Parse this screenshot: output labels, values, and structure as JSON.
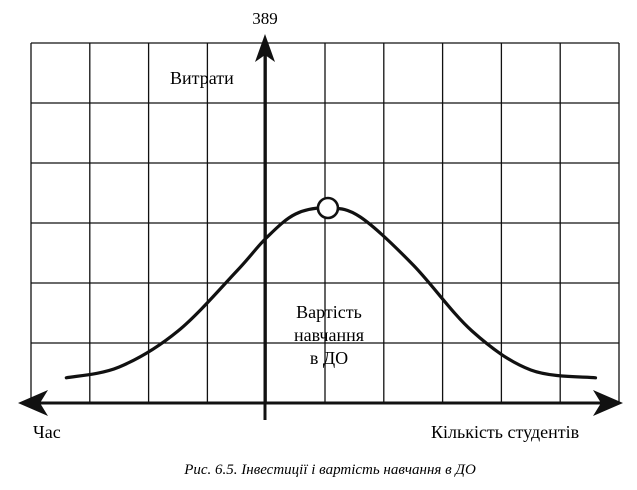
{
  "page": {
    "number": "389"
  },
  "figure": {
    "caption": "Рис. 6.5. Інвестиції і вартість навчання в ДО"
  },
  "chart_data": {
    "type": "line",
    "title": "",
    "ylabel": "Витрати",
    "xlabel_left": "Час",
    "xlabel_right": "Кількість студентів",
    "curve_label_lines": [
      "Вартість",
      "навчання",
      "в ДО"
    ],
    "grid": true,
    "grid_columns": 10,
    "grid_rows": 6,
    "x_range": [
      -4,
      6
    ],
    "y_range": [
      0,
      6
    ],
    "series": [
      {
        "values": [
          {
            "x": -3.4,
            "y": 0.42
          },
          {
            "x": -2.5,
            "y": 0.6
          },
          {
            "x": -1.5,
            "y": 1.2
          },
          {
            "x": -0.5,
            "y": 2.2
          },
          {
            "x": 0.0,
            "y": 2.75
          },
          {
            "x": 0.5,
            "y": 3.15
          },
          {
            "x": 1.05,
            "y": 3.25
          },
          {
            "x": 1.6,
            "y": 3.1
          },
          {
            "x": 2.5,
            "y": 2.3
          },
          {
            "x": 3.5,
            "y": 1.2
          },
          {
            "x": 4.5,
            "y": 0.55
          },
          {
            "x": 5.6,
            "y": 0.42
          }
        ]
      }
    ],
    "marker": {
      "x": 1.05,
      "y": 3.25,
      "shape": "hollow-circle"
    },
    "colors": {
      "ink": "#111111",
      "background": "#ffffff"
    }
  }
}
